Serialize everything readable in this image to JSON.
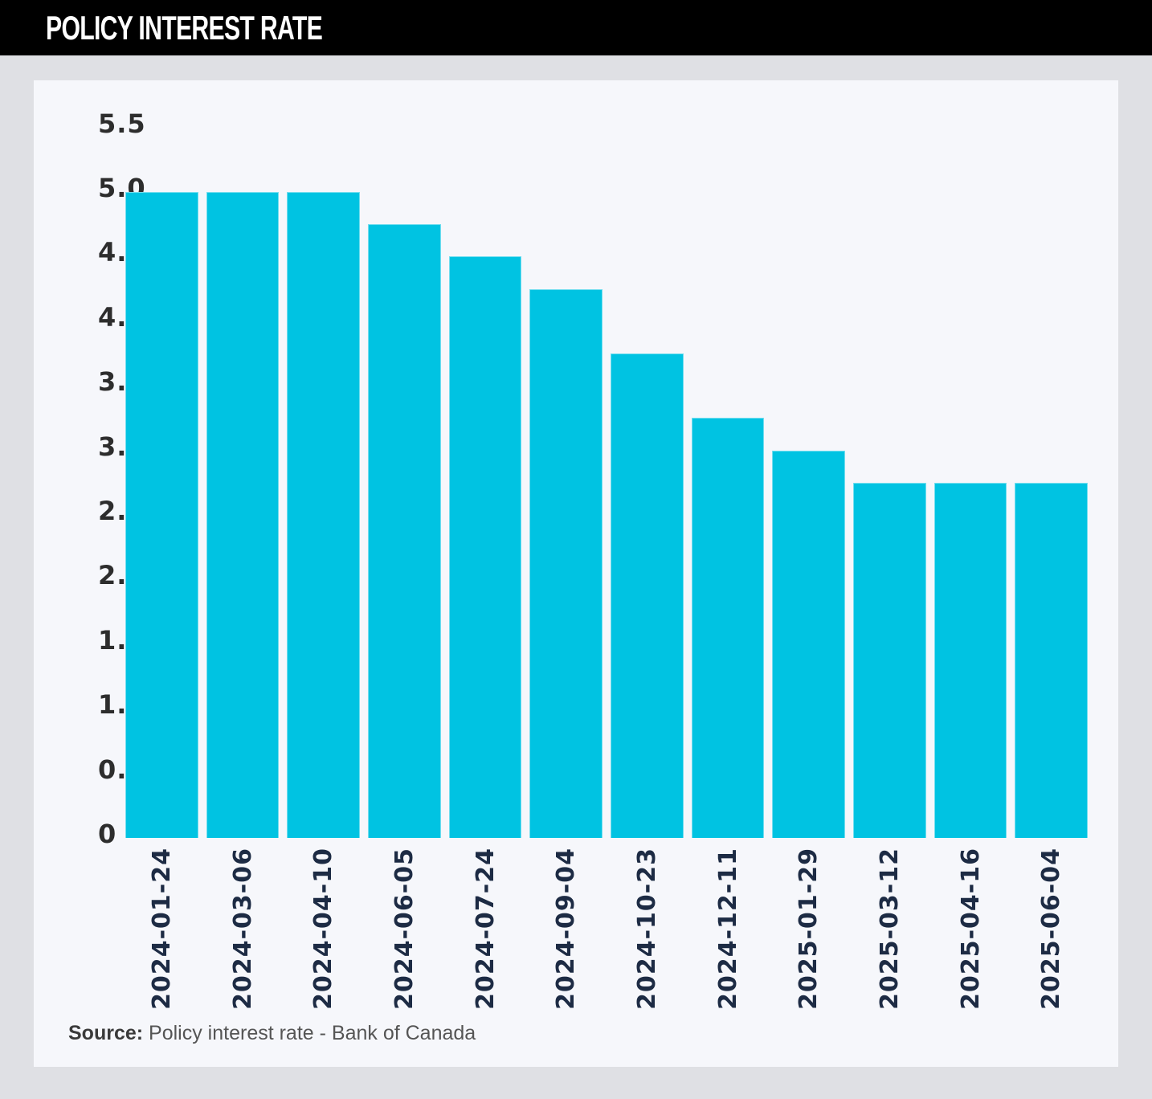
{
  "header": {
    "title": "POLICY INTEREST RATE"
  },
  "chart_data": {
    "type": "bar",
    "title": "POLICY INTEREST RATE",
    "categories": [
      "2024-01-24",
      "2024-03-06",
      "2024-04-10",
      "2024-06-05",
      "2024-07-24",
      "2024-09-04",
      "2024-10-23",
      "2024-12-11",
      "2025-01-29",
      "2025-03-12",
      "2025-04-16",
      "2025-06-04"
    ],
    "values": [
      5.0,
      5.0,
      5.0,
      4.75,
      4.5,
      4.25,
      3.75,
      3.25,
      3.0,
      2.75,
      2.75,
      2.75
    ],
    "xlabel": "",
    "ylabel": "",
    "ylim": [
      0,
      5.5
    ],
    "ytick_values": [
      0,
      0.5,
      1.0,
      1.5,
      2.0,
      2.5,
      3.0,
      3.5,
      4.0,
      4.5,
      5.0,
      5.5
    ],
    "ytick_labels": [
      "0",
      "0.5",
      "1.0",
      "1.5",
      "2.0",
      "2.5",
      "3.0",
      "3.5",
      "4.0",
      "4.5",
      "5.0",
      "5.5"
    ],
    "grid": false,
    "legend_position": "none",
    "bar_color": "#00c3e2"
  },
  "source": {
    "label": "Source:",
    "text": "Policy interest rate - Bank of Canada"
  },
  "colors": {
    "header_bg": "#000000",
    "header_text": "#ffffff",
    "page_bg": "#dfe0e4",
    "card_bg": "#f6f7fb",
    "bar": "#00c3e2",
    "x_label": "#1d2b44",
    "y_label": "#2d2d2d"
  }
}
